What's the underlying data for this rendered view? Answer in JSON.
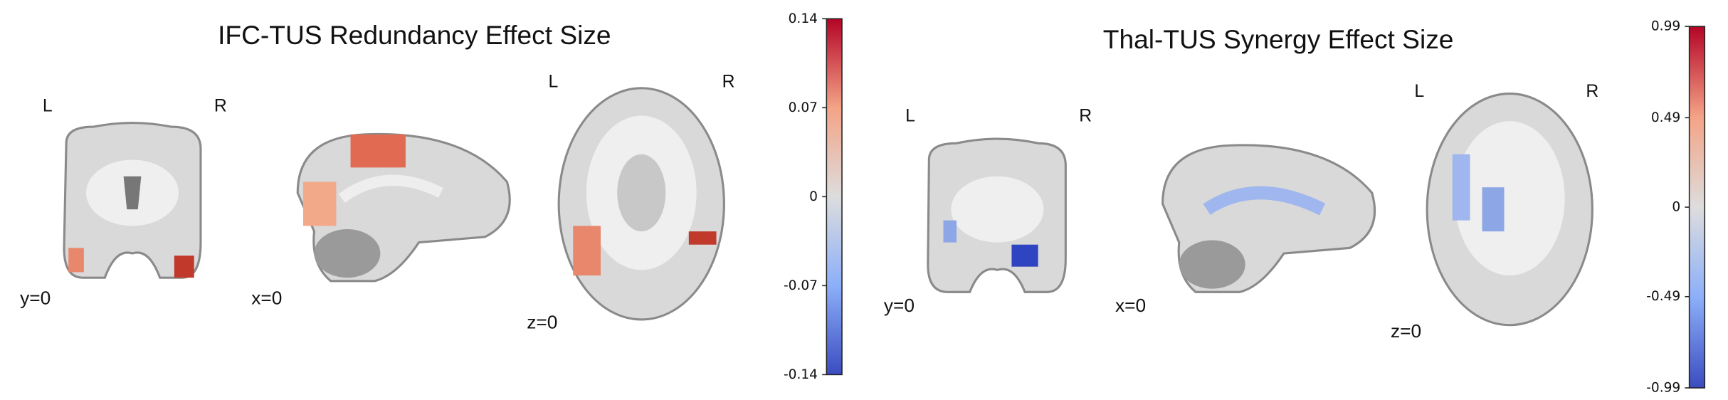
{
  "panels": [
    {
      "title": "IFC-TUS Redundancy Effect Size",
      "views": [
        {
          "left": "L",
          "right": "R",
          "coord": "y=0"
        },
        {
          "coord": "x=0"
        },
        {
          "left": "L",
          "right": "R",
          "coord": "z=0"
        }
      ],
      "colorbar": {
        "lim": [
          -0.14,
          0.14
        ],
        "ticks": [
          0.14,
          0.07,
          0,
          -0.07,
          -0.14
        ]
      }
    },
    {
      "title": "Thal-TUS Synergy Effect Size",
      "views": [
        {
          "left": "L",
          "right": "R",
          "coord": "y=0"
        },
        {
          "coord": "x=0"
        },
        {
          "left": "L",
          "right": "R",
          "coord": "z=0"
        }
      ],
      "colorbar": {
        "lim": [
          -0.99,
          0.99
        ],
        "ticks": [
          0.99,
          0.49,
          0,
          -0.49,
          -0.99
        ]
      }
    }
  ]
}
